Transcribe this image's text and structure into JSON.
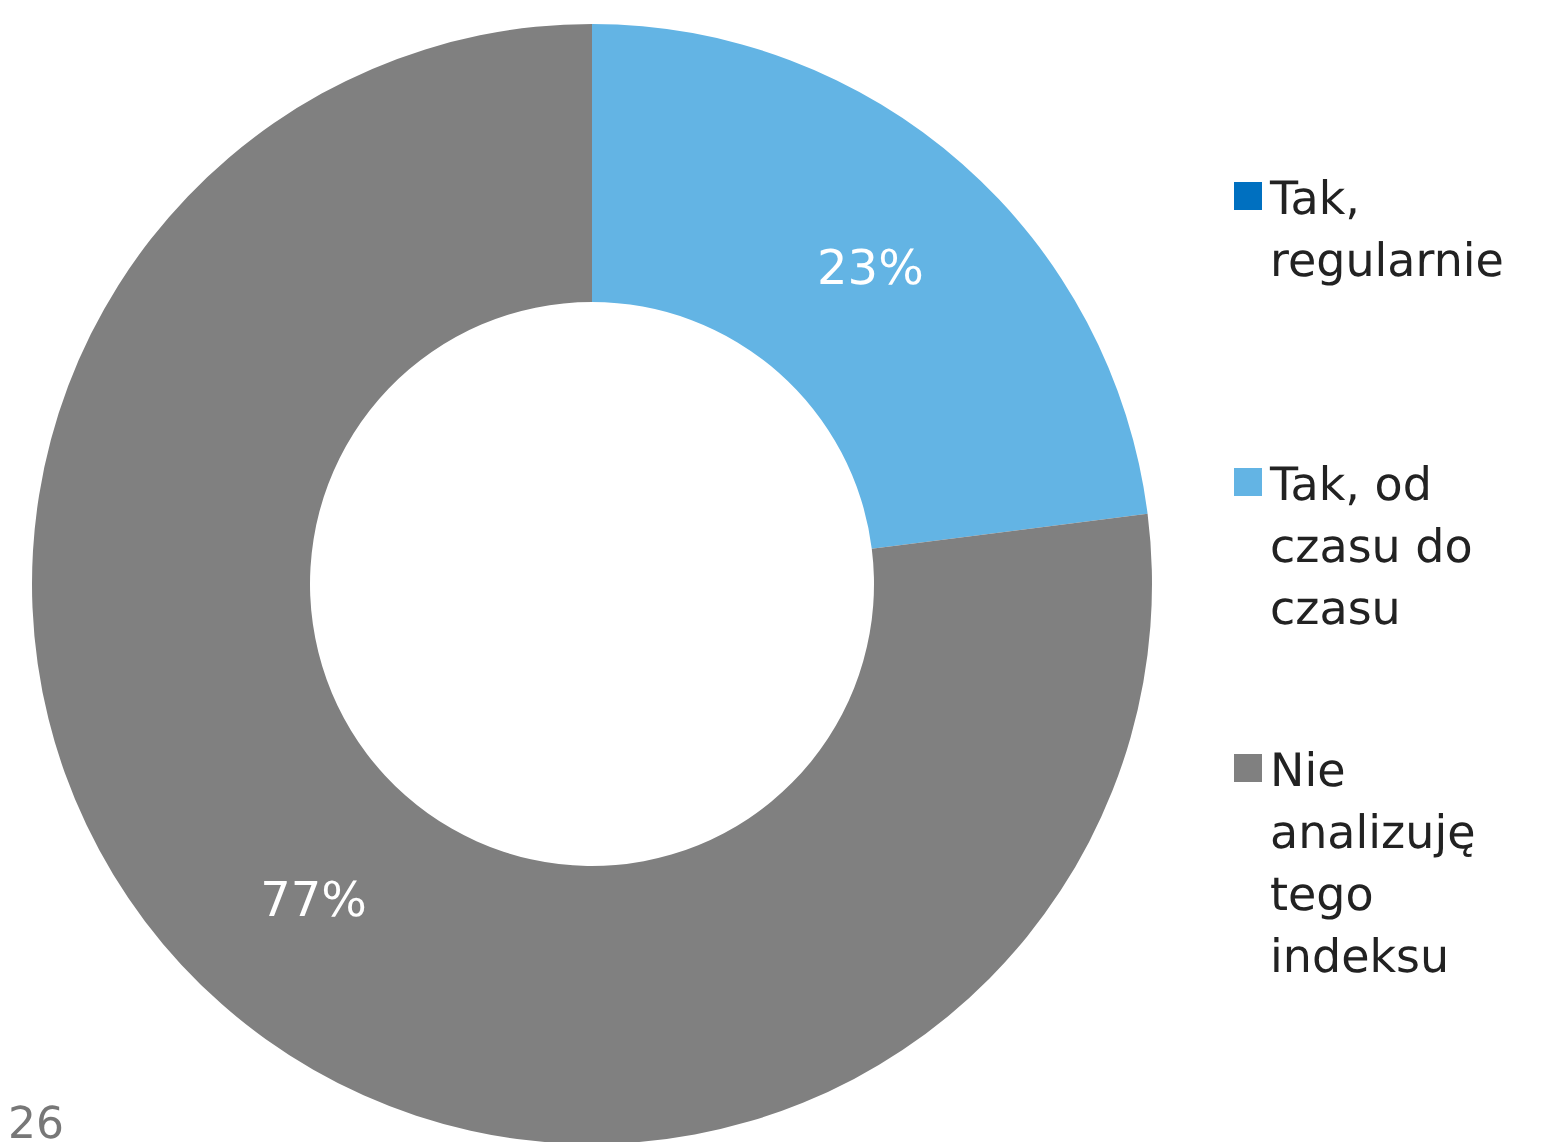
{
  "chart_data": {
    "type": "donut",
    "categories": [
      "Tak, regularnie",
      "Tak, od czasu do czasu",
      "Nie analizuję tego indeksu"
    ],
    "values": [
      0,
      23,
      77
    ],
    "colors": [
      "#0070c0",
      "#63b4e4",
      "#808080"
    ],
    "value_labels": [
      null,
      "23%",
      "77%"
    ],
    "legend": "right",
    "annotations": [
      "26"
    ]
  }
}
